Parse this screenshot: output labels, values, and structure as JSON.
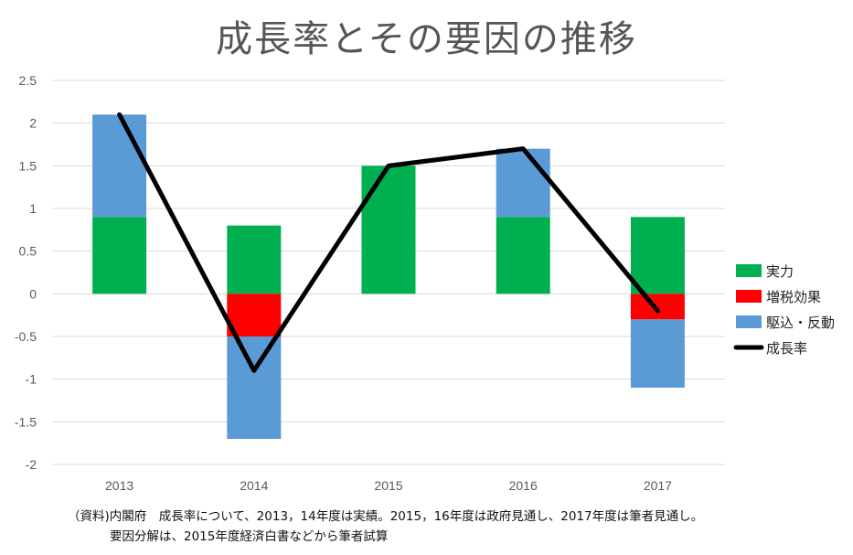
{
  "chart_data": {
    "type": "bar",
    "title": "成長率とその要因の推移",
    "categories": [
      "2013",
      "2014",
      "2015",
      "2016",
      "2017"
    ],
    "ylim": [
      -2,
      2.5
    ],
    "yticks": [
      "2.5",
      "2",
      "1.5",
      "1",
      "0.5",
      "0",
      "-0.5",
      "-1",
      "-1.5",
      "-2"
    ],
    "grid": true,
    "legend_position": "right",
    "stacked": true,
    "series": [
      {
        "name": "実力",
        "kind": "bar",
        "color": "#00b050",
        "values": [
          0.9,
          0.8,
          1.5,
          0.9,
          0.9
        ]
      },
      {
        "name": "増税効果",
        "kind": "bar",
        "color": "#ff0000",
        "values": [
          0,
          -0.5,
          0,
          0,
          -0.3
        ]
      },
      {
        "name": "駆込・反動",
        "kind": "bar",
        "color": "#5b9bd5",
        "values": [
          1.2,
          -1.2,
          0,
          0.8,
          -0.8
        ]
      },
      {
        "name": "成長率",
        "kind": "line",
        "color": "#000000",
        "values": [
          2.1,
          -0.9,
          1.5,
          1.7,
          -0.2
        ]
      }
    ]
  },
  "note": {
    "line1": "（資料)内閣府　成長率について、2013，14年度は実績。2015，16年度は政府見通し、2017年度は筆者見通し。",
    "line2": "要因分解は、2015年度経済白書などから筆者試算"
  }
}
